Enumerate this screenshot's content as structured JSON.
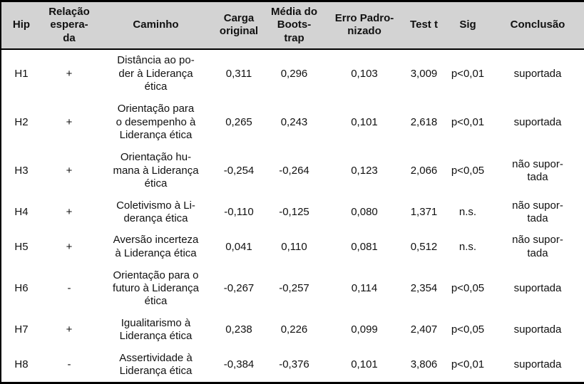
{
  "colors": {
    "header_bg": "#d3d3d3",
    "border": "#000000",
    "text": "#111111"
  },
  "table": {
    "columns": [
      {
        "key": "hip",
        "label": "Hip"
      },
      {
        "key": "relacao",
        "label": "Relação\nespera-\nda"
      },
      {
        "key": "caminho",
        "label": "Caminho"
      },
      {
        "key": "carga",
        "label": "Carga\noriginal"
      },
      {
        "key": "media",
        "label": "Média do\nBoots-\ntrap"
      },
      {
        "key": "erro",
        "label": "Erro Padro-\nnizado"
      },
      {
        "key": "testt",
        "label": "Test t"
      },
      {
        "key": "sig",
        "label": "Sig"
      },
      {
        "key": "conclusao",
        "label": "Conclusão"
      }
    ],
    "rows": [
      {
        "hip": "H1",
        "relacao": "+",
        "caminho": "Distância ao po-\nder à Liderança\nética",
        "carga": "0,311",
        "media": "0,296",
        "erro": "0,103",
        "testt": "3,009",
        "sig": "p<0,01",
        "conclusao": "suportada",
        "lines": 3
      },
      {
        "hip": "H2",
        "relacao": "+",
        "caminho": "Orientação para\no desempenho à\nLiderança ética",
        "carga": "0,265",
        "media": "0,243",
        "erro": "0,101",
        "testt": "2,618",
        "sig": "p<0,01",
        "conclusao": "suportada",
        "lines": 3
      },
      {
        "hip": "H3",
        "relacao": "+",
        "caminho": "Orientação hu-\nmana à Liderança\nética",
        "carga": "-0,254",
        "media": "-0,264",
        "erro": "0,123",
        "testt": "2,066",
        "sig": "p<0,05",
        "conclusao": "não supor-\ntada",
        "lines": 3
      },
      {
        "hip": "H4",
        "relacao": "+",
        "caminho": "Coletivismo à Li-\nderança ética",
        "carga": "-0,110",
        "media": "-0,125",
        "erro": "0,080",
        "testt": "1,371",
        "sig": "n.s.",
        "conclusao": "não supor-\ntada",
        "lines": 2
      },
      {
        "hip": "H5",
        "relacao": "+",
        "caminho": "Aversão incerteza\nà Liderança ética",
        "carga": "0,041",
        "media": "0,110",
        "erro": "0,081",
        "testt": "0,512",
        "sig": "n.s.",
        "conclusao": "não supor-\ntada",
        "lines": 2
      },
      {
        "hip": "H6",
        "relacao": "-",
        "caminho": "Orientação para o\nfuturo à Liderança\nética",
        "carga": "-0,267",
        "media": "-0,257",
        "erro": "0,114",
        "testt": "2,354",
        "sig": "p<0,05",
        "conclusao": "suportada",
        "lines": 3
      },
      {
        "hip": "H7",
        "relacao": "+",
        "caminho": "Igualitarismo à\nLiderança ética",
        "carga": "0,238",
        "media": "0,226",
        "erro": "0,099",
        "testt": "2,407",
        "sig": "p<0,05",
        "conclusao": "suportada",
        "lines": 2
      },
      {
        "hip": "H8",
        "relacao": "-",
        "caminho": "Assertividade à\nLiderança ética",
        "carga": "-0,384",
        "media": "-0,376",
        "erro": "0,101",
        "testt": "3,806",
        "sig": "p<0,01",
        "conclusao": "suportada",
        "lines": 2
      }
    ]
  }
}
